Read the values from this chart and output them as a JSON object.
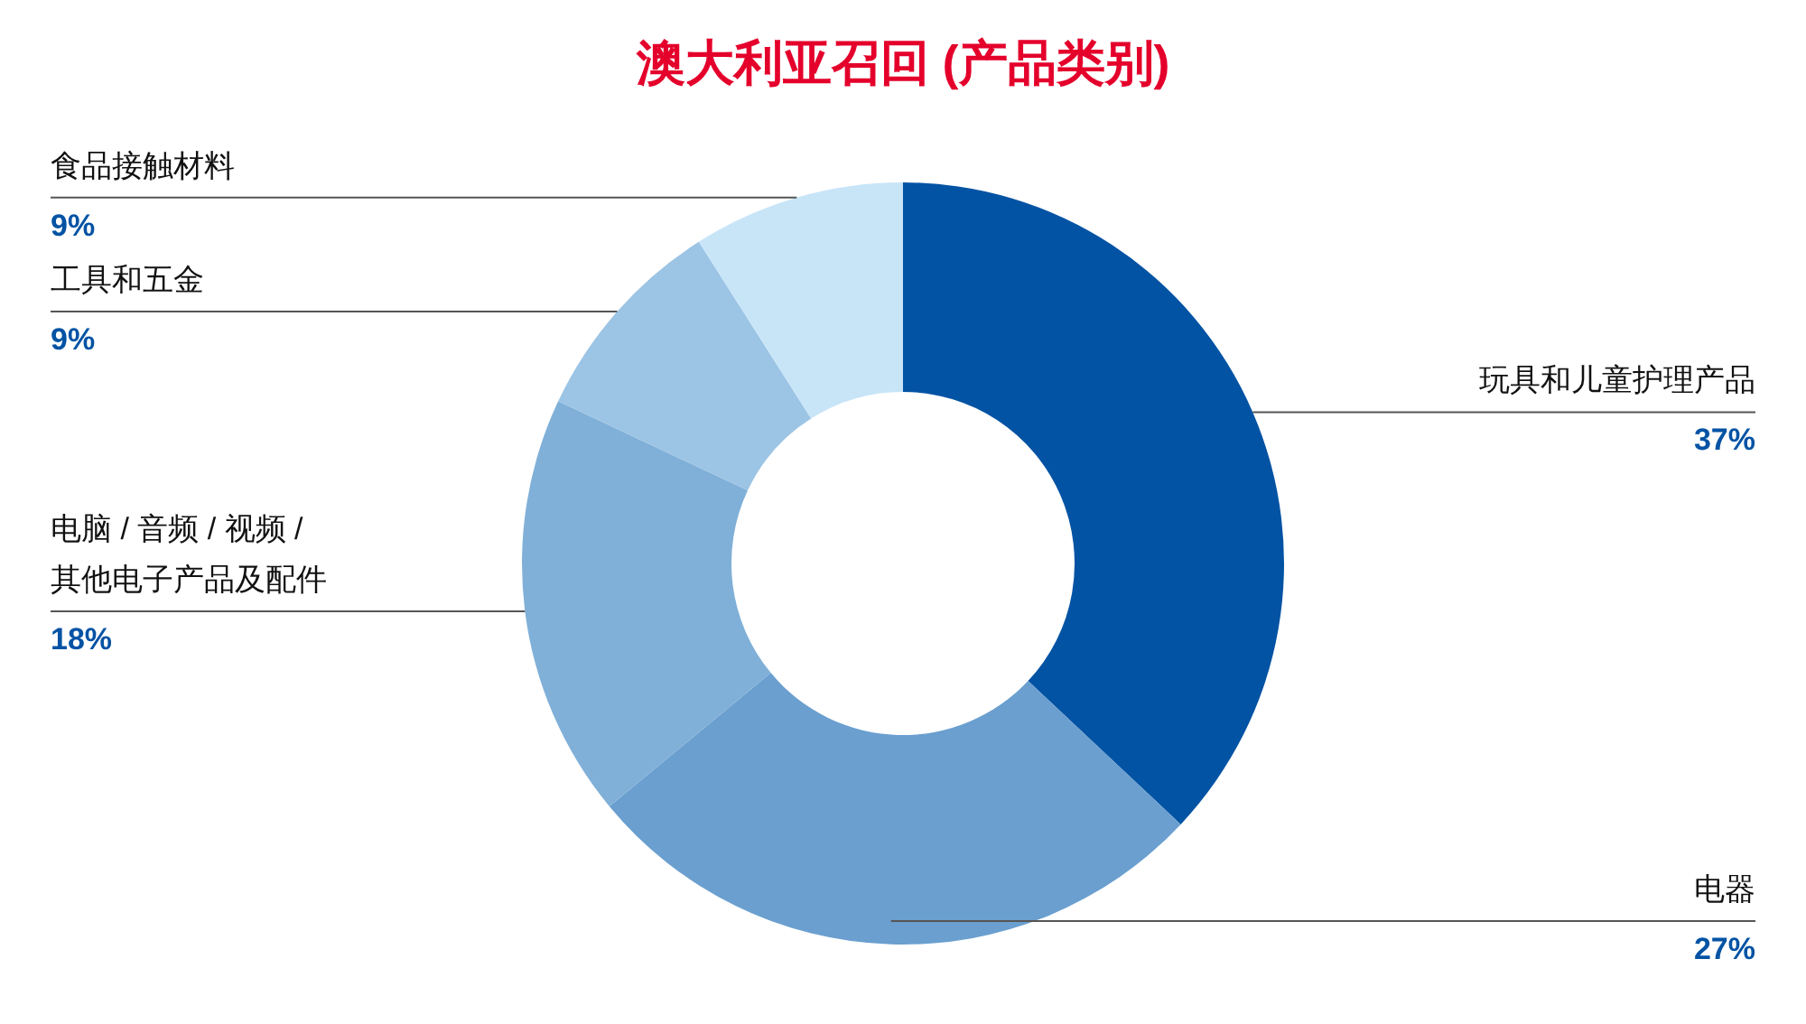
{
  "chart_data": {
    "type": "donut",
    "title": "澳大利亚召回 (产品类别)",
    "categories": [
      "玩具和儿童护理产品",
      "电器",
      "电脑 / 音频 / 视频 /\n其他电子产品及配件",
      "工具和五金",
      "食品接触材料"
    ],
    "values": [
      37,
      27,
      18,
      9,
      9
    ],
    "value_labels": [
      "37%",
      "27%",
      "18%",
      "9%",
      "9%"
    ],
    "colors": [
      "#0353a4",
      "#6a9fcf",
      "#80b0d8",
      "#9cc4e4",
      "#c8e5f8"
    ]
  }
}
